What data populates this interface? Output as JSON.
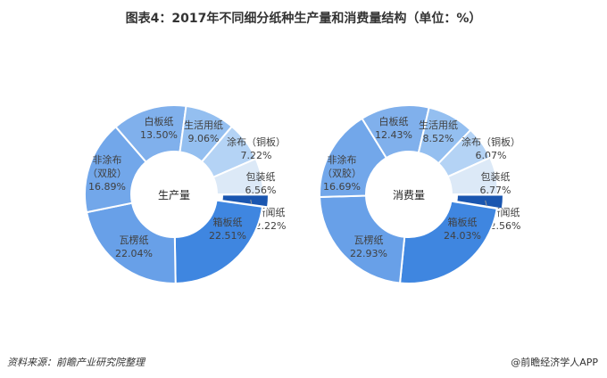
{
  "title": "图表4：2017年不同细分纸种生产量和消费量结构（单位：%）",
  "source": "资料来源：前瞻产业研究院整理",
  "brand": "@前瞻经济学人APP",
  "chart_data": [
    {
      "type": "pie",
      "donut": true,
      "center_label": "生产量",
      "categories": [
        "新闻纸",
        "箱板纸",
        "瓦楞纸",
        "非涂布\n（双胶）",
        "白板纸",
        "生活用纸",
        "涂布（铜板）",
        "包装纸"
      ],
      "values": [
        2.22,
        22.51,
        22.04,
        16.89,
        13.5,
        9.06,
        7.22,
        6.56
      ],
      "labels": [
        "2.22%",
        "22.51%",
        "22.04%",
        "16.89%",
        "13.50%",
        "9.06%",
        "7.22%",
        "6.56%"
      ],
      "colors": [
        "#1a56b0",
        "#3f86e0",
        "#68a0e8",
        "#72a7ea",
        "#80b0ec",
        "#94bff0",
        "#b4d3f5",
        "#dce9f7"
      ]
    },
    {
      "type": "pie",
      "donut": true,
      "center_label": "消费量",
      "categories": [
        "新闻纸",
        "箱板纸",
        "瓦楞纸",
        "非涂布\n（双胶）",
        "白板纸",
        "生活用纸",
        "涂布（铜板）",
        "包装纸"
      ],
      "values": [
        2.56,
        24.03,
        22.93,
        16.69,
        12.43,
        8.52,
        6.07,
        6.77
      ],
      "labels": [
        "2.56%",
        "24.03%",
        "22.93%",
        "16.69%",
        "12.43%",
        "8.52%",
        "6.07%",
        "6.77%"
      ],
      "colors": [
        "#1a56b0",
        "#3f86e0",
        "#68a0e8",
        "#72a7ea",
        "#80b0ec",
        "#94bff0",
        "#b4d3f5",
        "#dce9f7"
      ]
    }
  ]
}
